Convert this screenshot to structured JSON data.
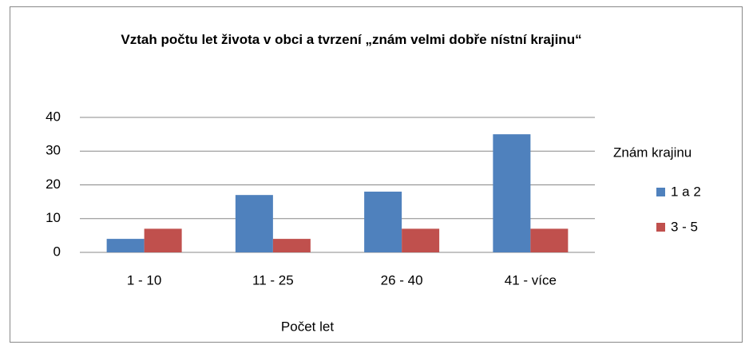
{
  "chart_data": {
    "type": "bar",
    "title": "Vztah  počtu let života v obci a tvrzení „znám velmi dobře nístní krajinu“",
    "categories": [
      "1 - 10",
      "11 - 25",
      "26 - 40",
      "41 - více"
    ],
    "series": [
      {
        "name": "1 a 2",
        "color": "#4f81bd",
        "values": [
          4,
          17,
          18,
          35
        ]
      },
      {
        "name": "3 - 5",
        "color": "#c0504d",
        "values": [
          7,
          4,
          7,
          7
        ]
      }
    ],
    "legend_title": "Znám krajinu",
    "xlabel": "Počet let",
    "ylim": [
      0,
      40
    ],
    "yticks": [
      0,
      10,
      20,
      30,
      40
    ],
    "grid": true,
    "legend": "right"
  }
}
